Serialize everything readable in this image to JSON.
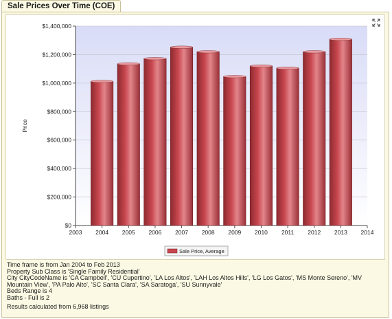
{
  "tab": {
    "title": "Sale Prices Over Time (COE)"
  },
  "icons": {
    "expand": "expand-icon"
  },
  "colors": {
    "bar": "#c8474f",
    "plot_bg_top": "#d9dcf7",
    "plot_bg_bottom": "#ffffff",
    "panel": "#fbf9e3"
  },
  "chart_data": {
    "type": "bar",
    "title": "",
    "xlabel": "",
    "ylabel": "Price",
    "x": [
      2004,
      2005,
      2006,
      2007,
      2008,
      2009,
      2010,
      2011,
      2012,
      2013
    ],
    "series": [
      {
        "name": "Sale Price, Average",
        "values": [
          1012000,
          1135000,
          1172000,
          1252000,
          1220000,
          1046000,
          1120000,
          1105000,
          1220000,
          1308000
        ]
      }
    ],
    "xlim": [
      2003,
      2014
    ],
    "ylim": [
      0,
      1400000
    ],
    "x_ticks": [
      "2003",
      "2004",
      "2005",
      "2006",
      "2007",
      "2008",
      "2009",
      "2010",
      "2011",
      "2012",
      "2013",
      "2014"
    ],
    "y_ticks": [
      "$0",
      "$200,000",
      "$400,000",
      "$600,000",
      "$800,000",
      "$1,000,000",
      "$1,200,000",
      "$1,400,000"
    ],
    "grid": true,
    "legend": "bottom-center"
  },
  "footer": {
    "lines": [
      "Time frame is from Jan 2004 to Feb 2013",
      "Property Sub Class is 'Single Family Residential'",
      "City CityCodeName is 'CA Campbell', 'CU Cupertino', 'LA Los Altos', 'LAH Los Altos Hills', 'LG Los Gatos', 'MS Monte Sereno', 'MV Mountain View', 'PA Palo Alto', 'SC Santa Clara', 'SA Saratoga', 'SU Sunnyvale'",
      "Beds Range is 4",
      "Baths - Full is 2"
    ],
    "results": "Results calculated from 6,968 listings"
  }
}
